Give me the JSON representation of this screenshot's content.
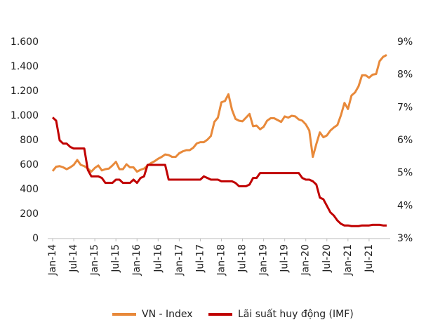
{
  "chart_data": {
    "type": "line",
    "categories": [
      "Jan-14",
      null,
      null,
      null,
      null,
      null,
      "Jul-14",
      null,
      null,
      null,
      null,
      null,
      "Jan-15",
      null,
      null,
      null,
      null,
      null,
      "Jul-15",
      null,
      null,
      null,
      null,
      null,
      "Jan-16",
      null,
      null,
      null,
      null,
      null,
      "Jul-16",
      null,
      null,
      null,
      null,
      null,
      "Jan-17",
      null,
      null,
      null,
      null,
      null,
      "Jul-17",
      null,
      null,
      null,
      null,
      null,
      "Jan-18",
      null,
      null,
      null,
      null,
      null,
      "Jul-18",
      null,
      null,
      null,
      null,
      null,
      "Jan-19",
      null,
      null,
      null,
      null,
      null,
      "Jul-19",
      null,
      null,
      null,
      null,
      null,
      "Jan-20",
      null,
      null,
      null,
      null,
      null,
      "Jul-20",
      null,
      null,
      null,
      null,
      null,
      "Jan-21",
      null,
      null,
      null,
      null,
      null,
      "Jul-21",
      null,
      null,
      null,
      null,
      null
    ],
    "series": [
      {
        "name": "VN - Index",
        "color": "#e8893a",
        "values": [
          550,
          585,
          590,
          580,
          565,
          580,
          600,
          640,
          600,
          590,
          570,
          545,
          575,
          595,
          555,
          565,
          570,
          595,
          625,
          565,
          565,
          605,
          580,
          580,
          545,
          560,
          570,
          595,
          615,
          630,
          650,
          665,
          685,
          680,
          665,
          665,
          695,
          710,
          720,
          720,
          740,
          775,
          785,
          785,
          805,
          835,
          950,
          985,
          1110,
          1120,
          1175,
          1050,
          975,
          960,
          955,
          985,
          1015,
          915,
          920,
          890,
          910,
          960,
          980,
          980,
          965,
          950,
          995,
          985,
          1000,
          995,
          970,
          960,
          930,
          880,
          665,
          770,
          865,
          825,
          840,
          880,
          905,
          925,
          1005,
          1105,
          1055,
          1165,
          1190,
          1240,
          1330,
          1330,
          1310,
          1335,
          1340,
          1445,
          1480,
          1495
        ]
      },
      {
        "name": "Lãi suất huy động (IMF)",
        "color": "#c00000",
        "axis": "y2",
        "values": [
          6.7,
          6.6,
          6.0,
          5.9,
          5.9,
          5.8,
          5.75,
          5.75,
          5.75,
          5.75,
          5.1,
          4.9,
          4.9,
          4.9,
          4.85,
          4.7,
          4.7,
          4.7,
          4.8,
          4.8,
          4.7,
          4.7,
          4.7,
          4.8,
          4.7,
          4.85,
          4.9,
          5.25,
          5.25,
          5.25,
          5.25,
          5.25,
          5.25,
          4.8,
          4.8,
          4.8,
          4.8,
          4.8,
          4.8,
          4.8,
          4.8,
          4.8,
          4.8,
          4.9,
          4.85,
          4.8,
          4.8,
          4.8,
          4.75,
          4.75,
          4.75,
          4.75,
          4.7,
          4.6,
          4.6,
          4.6,
          4.65,
          4.85,
          4.85,
          5.0,
          5.0,
          5.0,
          5.0,
          5.0,
          5.0,
          5.0,
          5.0,
          5.0,
          5.0,
          5.0,
          5.0,
          4.85,
          4.8,
          4.8,
          4.75,
          4.65,
          4.25,
          4.2,
          4.0,
          3.8,
          3.7,
          3.55,
          3.45,
          3.4,
          3.4,
          3.38,
          3.38,
          3.38,
          3.4,
          3.4,
          3.4,
          3.42,
          3.42,
          3.42,
          3.4,
          3.4
        ]
      }
    ],
    "ylim": [
      0,
      1600
    ],
    "yticks": [
      0,
      200,
      400,
      600,
      800,
      {
        "value": 1000,
        "label": "1.000"
      },
      {
        "value": 1200,
        "label": "1.200"
      },
      {
        "value": 1400,
        "label": "1.400"
      },
      {
        "value": 1600,
        "label": "1.600"
      }
    ],
    "y2lim": [
      3,
      9
    ],
    "y2ticks": [
      {
        "value": 3,
        "label": "3%"
      },
      {
        "value": 4,
        "label": "4%"
      },
      {
        "value": 5,
        "label": "5%"
      },
      {
        "value": 6,
        "label": "6%"
      },
      {
        "value": 7,
        "label": "7%"
      },
      {
        "value": 8,
        "label": "8%"
      },
      {
        "value": 9,
        "label": "9%"
      }
    ],
    "grid": false,
    "legend": "bottom"
  }
}
